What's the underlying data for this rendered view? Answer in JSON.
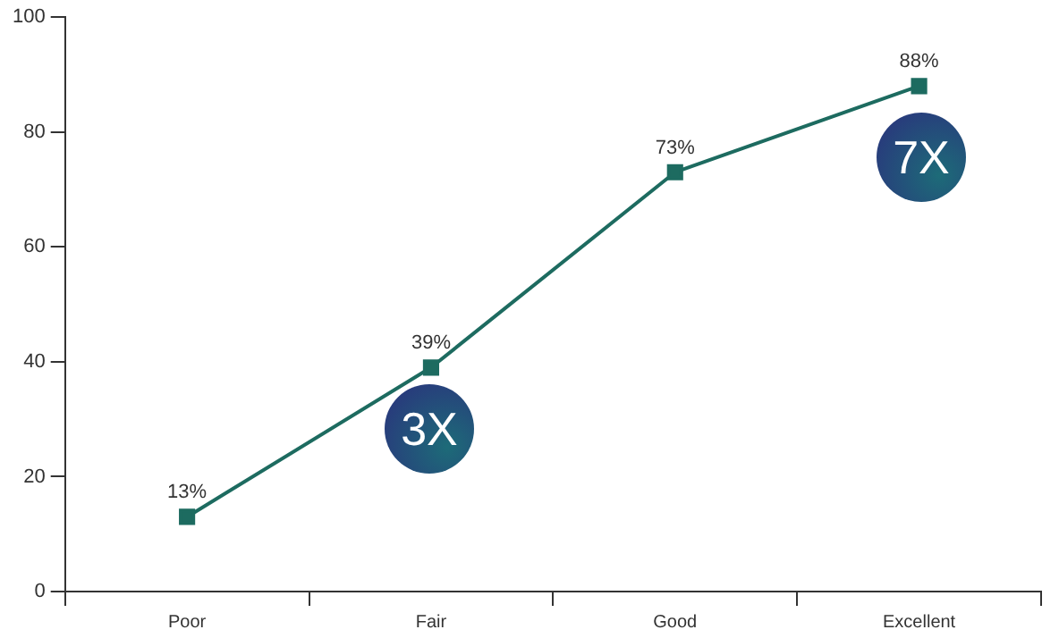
{
  "chart_data": {
    "type": "line",
    "categories": [
      "Poor",
      "Fair",
      "Good",
      "Excellent"
    ],
    "series": [
      {
        "color": "#1d6b60",
        "values": [
          13,
          39,
          73,
          88
        ],
        "value_labels": [
          "13%",
          "39%",
          "73%",
          "88%"
        ]
      }
    ],
    "ylim": [
      0,
      100
    ],
    "yticks": [
      0,
      20,
      40,
      60,
      80,
      100
    ],
    "grid": false,
    "legend": false,
    "marker": "square",
    "line_style": "solid",
    "annotations": [
      "3X",
      "7X"
    ]
  }
}
